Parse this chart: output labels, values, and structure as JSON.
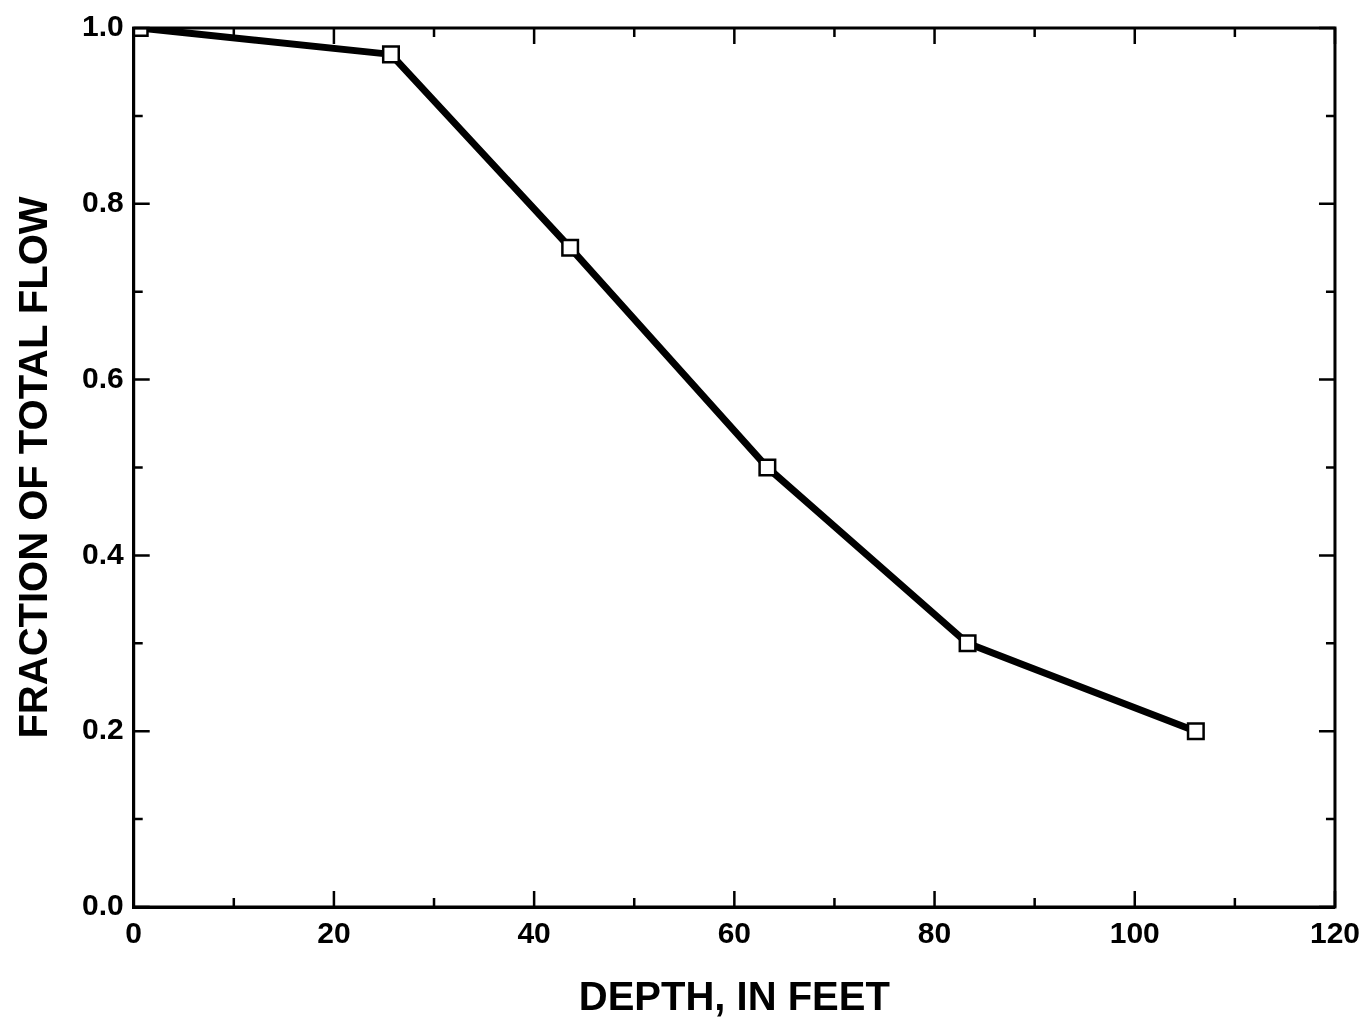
{
  "chart_data": {
    "type": "line",
    "xlabel": "DEPTH, IN FEET",
    "ylabel": "FRACTION OF TOTAL FLOW",
    "x": [
      0.6,
      25.7,
      43.6,
      63.3,
      83.3,
      106.1
    ],
    "series": [
      {
        "color": "#000000",
        "values": [
          1.0,
          0.97,
          0.75,
          0.5,
          0.3,
          0.2
        ]
      }
    ],
    "xlim": [
      0,
      120
    ],
    "xticks": [
      0,
      {
        "value": 10,
        "label": null
      },
      20,
      {
        "value": 30,
        "label": null
      },
      40,
      {
        "value": 50,
        "label": null
      },
      60,
      {
        "value": 70,
        "label": null
      },
      80,
      {
        "value": 90,
        "label": null
      },
      100,
      {
        "value": 110,
        "label": null
      },
      120
    ],
    "ylim": [
      0,
      1
    ],
    "yticks": [
      {
        "value": 0,
        "label": "0.0"
      },
      {
        "value": 0.1,
        "label": null
      },
      {
        "value": 0.2,
        "label": "0.2"
      },
      {
        "value": 0.3,
        "label": null
      },
      {
        "value": 0.4,
        "label": "0.4"
      },
      {
        "value": 0.5,
        "label": null
      },
      {
        "value": 0.6,
        "label": "0.6"
      },
      {
        "value": 0.7,
        "label": null
      },
      {
        "value": 0.8,
        "label": "0.8"
      },
      {
        "value": 0.9,
        "label": null
      },
      {
        "value": 1,
        "label": "1.0"
      }
    ],
    "marker": "square",
    "line_style": "solid",
    "grid": false,
    "legend": false
  }
}
